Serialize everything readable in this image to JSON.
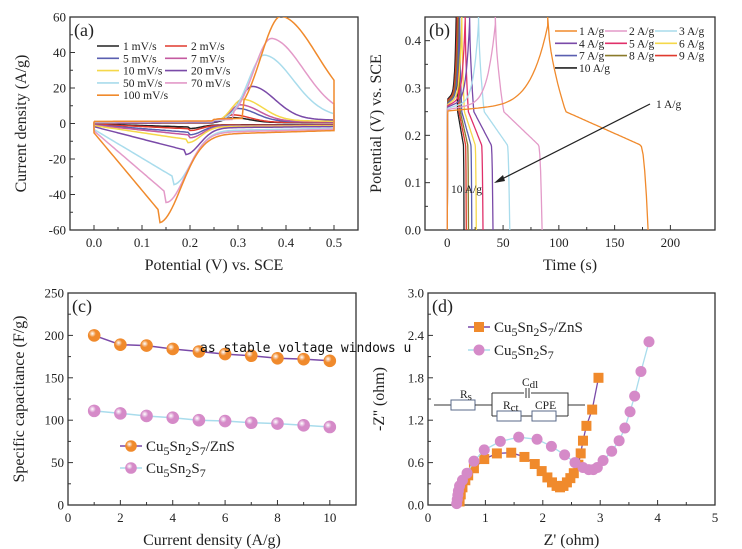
{
  "overlay_text": "as stable voltage windows u",
  "colors": {
    "black": "#222222",
    "red": "#e03a2e",
    "blue": "#5a5fb0",
    "magenta": "#c45aa0",
    "yellow": "#f5d84a",
    "purple": "#7a4aa8",
    "lightblue": "#a9dcec",
    "pink": "#e39ac8",
    "orange": "#f08a2c",
    "olive": "#8a7a2a",
    "crimson": "#e0306a"
  },
  "chart_data": [
    {
      "id": "a",
      "type": "line",
      "panel_label": "(a)",
      "xlabel": "Potential (V) vs. SCE",
      "ylabel": "Current density (A/g)",
      "xlim": [
        -0.05,
        0.55
      ],
      "ylim": [
        -60,
        60
      ],
      "xticks": [
        "0.0",
        "0.1",
        "0.2",
        "0.3",
        "0.4",
        "0.5"
      ],
      "yticks": [
        "-60",
        "-40",
        "-20",
        "0",
        "20",
        "40",
        "60"
      ],
      "legend_position": "top-left",
      "series": [
        {
          "name": "1 mV/s",
          "color": "#222222",
          "anodic_peak": [
            0.29,
            3
          ],
          "cathodic_peak": [
            0.2,
            -2
          ]
        },
        {
          "name": "2 mV/s",
          "color": "#e03a2e",
          "anodic_peak": [
            0.29,
            4.5
          ],
          "cathodic_peak": [
            0.2,
            -3
          ]
        },
        {
          "name": "5 mV/s",
          "color": "#5a5fb0",
          "anodic_peak": [
            0.3,
            8
          ],
          "cathodic_peak": [
            0.2,
            -5
          ]
        },
        {
          "name": "7 mV/s",
          "color": "#c45aa0",
          "anodic_peak": [
            0.305,
            10
          ],
          "cathodic_peak": [
            0.2,
            -6.5
          ]
        },
        {
          "name": "10 mV/s",
          "color": "#f5d84a",
          "anodic_peak": [
            0.31,
            13
          ],
          "cathodic_peak": [
            0.195,
            -9
          ]
        },
        {
          "name": "20 mV/s",
          "color": "#7a4aa8",
          "anodic_peak": [
            0.33,
            20
          ],
          "cathodic_peak": [
            0.19,
            -15
          ]
        },
        {
          "name": "50 mV/s",
          "color": "#a9dcec",
          "anodic_peak": [
            0.355,
            37
          ],
          "cathodic_peak": [
            0.165,
            -30
          ]
        },
        {
          "name": "70 mV/s",
          "color": "#e39ac8",
          "anodic_peak": [
            0.37,
            46
          ],
          "cathodic_peak": [
            0.15,
            -39
          ]
        },
        {
          "name": "100 mV/s",
          "color": "#f08a2c",
          "anodic_peak": [
            0.39,
            58
          ],
          "cathodic_peak": [
            0.135,
            -49
          ]
        }
      ]
    },
    {
      "id": "b",
      "type": "line",
      "panel_label": "(b)",
      "xlabel": "Time (s)",
      "ylabel": "Potential (V) vs. SCE",
      "xlim": [
        -20,
        240
      ],
      "ylim": [
        0,
        0.45
      ],
      "xticks": [
        "0",
        "50",
        "100",
        "150",
        "200"
      ],
      "yticks": [
        "0.0",
        "0.1",
        "0.2",
        "0.3",
        "0.4"
      ],
      "legend_position": "top-right",
      "annotation": {
        "from_label": "1 A/g",
        "to_label": "10 A/g"
      },
      "series": [
        {
          "name": "1 A/g",
          "color": "#f08a2c",
          "charge_end": 90,
          "discharge_end": 180
        },
        {
          "name": "2 A/g",
          "color": "#e39ac8",
          "charge_end": 43,
          "discharge_end": 85
        },
        {
          "name": "3 A/g",
          "color": "#a9dcec",
          "charge_end": 28,
          "discharge_end": 56
        },
        {
          "name": "4 A/g",
          "color": "#7a4aa8",
          "charge_end": 20,
          "discharge_end": 41
        },
        {
          "name": "5 A/g",
          "color": "#e0306a",
          "charge_end": 16,
          "discharge_end": 32
        },
        {
          "name": "6 A/g",
          "color": "#f5d84a",
          "charge_end": 13,
          "discharge_end": 26
        },
        {
          "name": "7 A/g",
          "color": "#5a5fb0",
          "charge_end": 11,
          "discharge_end": 22
        },
        {
          "name": "8 A/g",
          "color": "#8a7a2a",
          "charge_end": 10,
          "discharge_end": 19
        },
        {
          "name": "9 A/g",
          "color": "#e03a2e",
          "charge_end": 9,
          "discharge_end": 17
        },
        {
          "name": "10 A/g",
          "color": "#222222",
          "charge_end": 8,
          "discharge_end": 15
        }
      ]
    },
    {
      "id": "c",
      "type": "line",
      "panel_label": "(c)",
      "xlabel": "Current density (A/g)",
      "ylabel": "Specific capacitance (F/g)",
      "xlim": [
        0,
        11
      ],
      "ylim": [
        0,
        250
      ],
      "xticks": [
        "0",
        "2",
        "4",
        "6",
        "8",
        "10"
      ],
      "yticks": [
        "0",
        "50",
        "100",
        "150",
        "200",
        "250"
      ],
      "legend_position": "bottom-left",
      "x": [
        1,
        2,
        3,
        4,
        5,
        6,
        7,
        8,
        9,
        10
      ],
      "series": [
        {
          "name": "Cu5Sn2S7/ZnS",
          "line_color": "#7a4aa8",
          "marker_color": "#f08a2c",
          "marker": "sphere",
          "values": [
            200,
            189,
            188,
            184,
            181,
            178,
            176,
            173,
            172,
            170
          ]
        },
        {
          "name": "Cu5Sn2S7",
          "line_color": "#a9dcec",
          "marker_color": "#d58ac8",
          "marker": "sphere",
          "values": [
            111,
            108,
            105,
            103,
            100,
            99,
            97,
            96,
            94,
            92
          ]
        }
      ]
    },
    {
      "id": "d",
      "type": "scatter",
      "panel_label": "(d)",
      "xlabel": "Z' (ohm)",
      "ylabel": "-Z'' (ohm)",
      "xlim": [
        0,
        5
      ],
      "ylim": [
        0,
        3.0
      ],
      "xticks": [
        "0",
        "1",
        "2",
        "3",
        "4",
        "5"
      ],
      "yticks": [
        "0.0",
        "0.6",
        "1.2",
        "1.8",
        "2.4",
        "3.0"
      ],
      "legend_position": "top-left",
      "inset_circuit": {
        "labels": [
          "Rs",
          "Cdl",
          "Rct",
          "CPE"
        ]
      },
      "series": [
        {
          "name": "Cu5Sn2S7/ZnS",
          "line_color": "#7a4aa8",
          "marker_color": "#f08a2c",
          "marker": "square",
          "points": [
            [
              0.55,
              0.05
            ],
            [
              0.57,
              0.15
            ],
            [
              0.6,
              0.25
            ],
            [
              0.65,
              0.35
            ],
            [
              0.7,
              0.42
            ],
            [
              0.8,
              0.52
            ],
            [
              0.98,
              0.65
            ],
            [
              1.2,
              0.73
            ],
            [
              1.45,
              0.74
            ],
            [
              1.68,
              0.68
            ],
            [
              1.86,
              0.58
            ],
            [
              1.98,
              0.48
            ],
            [
              2.08,
              0.39
            ],
            [
              2.16,
              0.32
            ],
            [
              2.24,
              0.27
            ],
            [
              2.3,
              0.25
            ],
            [
              2.36,
              0.27
            ],
            [
              2.42,
              0.32
            ],
            [
              2.48,
              0.38
            ],
            [
              2.54,
              0.45
            ],
            [
              2.62,
              0.57
            ],
            [
              2.66,
              0.73
            ],
            [
              2.7,
              0.91
            ],
            [
              2.76,
              1.12
            ],
            [
              2.86,
              1.35
            ],
            [
              2.97,
              1.8
            ]
          ]
        },
        {
          "name": "Cu5Sn2S7",
          "line_color": "#a9dcec",
          "marker_color": "#d58ac8",
          "marker": "circle",
          "points": [
            [
              0.5,
              0.02
            ],
            [
              0.51,
              0.08
            ],
            [
              0.52,
              0.14
            ],
            [
              0.53,
              0.2
            ],
            [
              0.55,
              0.27
            ],
            [
              0.6,
              0.35
            ],
            [
              0.68,
              0.45
            ],
            [
              0.8,
              0.62
            ],
            [
              0.98,
              0.78
            ],
            [
              1.26,
              0.9
            ],
            [
              1.58,
              0.96
            ],
            [
              1.9,
              0.93
            ],
            [
              2.15,
              0.83
            ],
            [
              2.38,
              0.71
            ],
            [
              2.56,
              0.6
            ],
            [
              2.7,
              0.53
            ],
            [
              2.8,
              0.5
            ],
            [
              2.88,
              0.5
            ],
            [
              2.95,
              0.53
            ],
            [
              3.05,
              0.63
            ],
            [
              3.2,
              0.76
            ],
            [
              3.33,
              0.91
            ],
            [
              3.43,
              1.09
            ],
            [
              3.52,
              1.32
            ],
            [
              3.6,
              1.54
            ],
            [
              3.71,
              1.89
            ],
            [
              3.85,
              2.31
            ]
          ]
        }
      ]
    }
  ]
}
